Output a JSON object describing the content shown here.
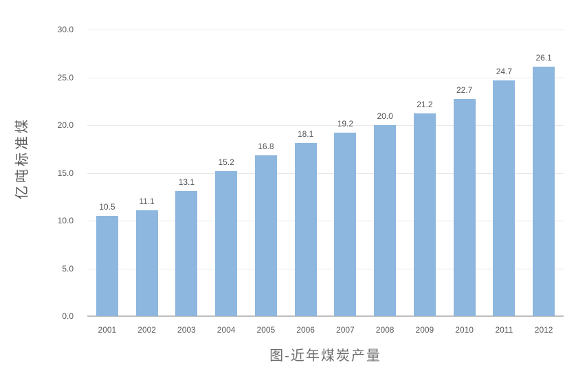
{
  "chart_data": {
    "type": "bar",
    "title": "图-近年煤炭产量",
    "xlabel": "",
    "ylabel": "亿吨标准煤",
    "categories": [
      "2001",
      "2002",
      "2003",
      "2004",
      "2005",
      "2006",
      "2007",
      "2008",
      "2009",
      "2010",
      "2011",
      "2012"
    ],
    "values": [
      10.5,
      11.1,
      13.1,
      15.2,
      16.8,
      18.1,
      19.2,
      20.0,
      21.2,
      22.7,
      24.7,
      26.1
    ],
    "y_ticks": [
      0.0,
      5.0,
      10.0,
      15.0,
      20.0,
      25.0,
      30.0
    ],
    "ylim": [
      0,
      30
    ],
    "grid": true,
    "legend": "none",
    "value_label_decimals": 1,
    "colors": {
      "bar": "#8eb7e0",
      "gridline": "#e8e8e8",
      "axis_line": "#bdbdbd",
      "tick_text": "#595959",
      "value_text": "#555555",
      "title_text": "#6e6e6e"
    }
  }
}
